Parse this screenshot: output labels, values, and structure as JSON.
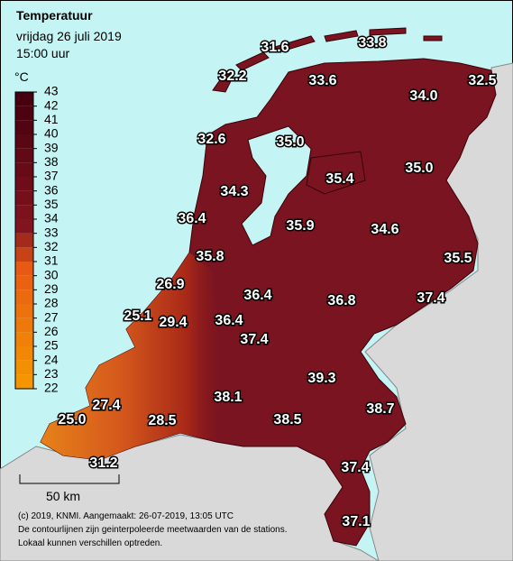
{
  "header": {
    "title": "Temperatuur",
    "date": "vrijdag 26 juli 2019",
    "time": "15:00 uur"
  },
  "legend": {
    "unit": "°C",
    "ticks": [
      22,
      23,
      24,
      25,
      26,
      27,
      28,
      29,
      30,
      31,
      32,
      33,
      34,
      35,
      36,
      37,
      38,
      39,
      40,
      41,
      42,
      43
    ]
  },
  "stations": [
    "31.6",
    "33.8",
    "32.2",
    "33.6",
    "32.5",
    "34.0",
    "32.6",
    "35.0",
    "35.4",
    "35.0",
    "34.3",
    "36.4",
    "35.9",
    "34.6",
    "35.5",
    "35.8",
    "26.9",
    "36.4",
    "36.8",
    "37.4",
    "25.1",
    "29.4",
    "36.4",
    "37.4",
    "39.3",
    "38.1",
    "27.4",
    "38.7",
    "38.5",
    "25.0",
    "28.5",
    "37.4",
    "31.2",
    "37.1"
  ],
  "scale": "50 km",
  "footer": [
    "(c) 2019, KNMI. Aangemaakt: 26-07-2019, 13:05 UTC",
    "De contourlijnen zijn geinterpoleerde meetwaarden van de stations.",
    "Lokaal kunnen verschillen optreden."
  ]
}
